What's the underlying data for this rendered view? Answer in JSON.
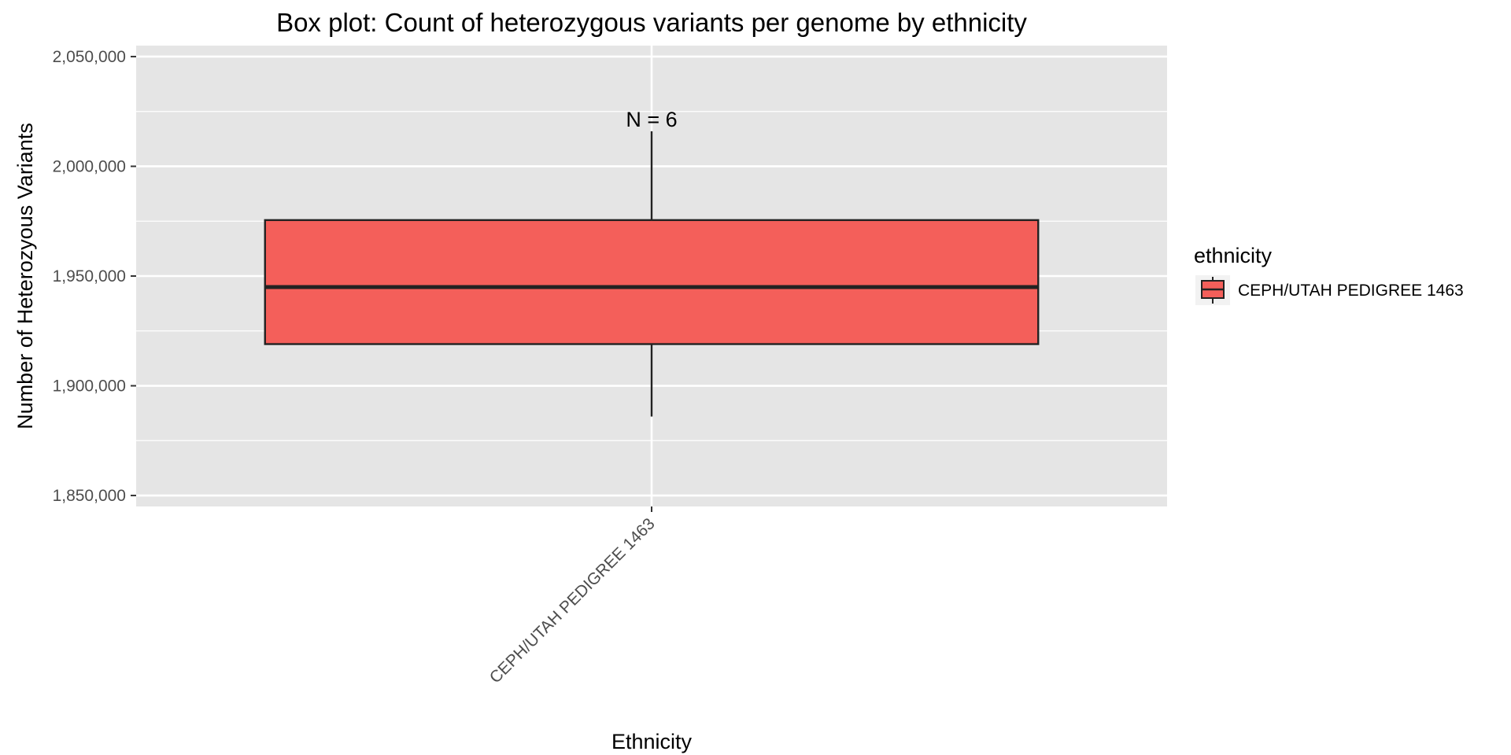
{
  "chart_data": {
    "type": "boxplot",
    "title": "Box plot: Count of heterozygous variants per genome by ethnicity",
    "xlabel": "Ethnicity",
    "ylabel": "Number of Heterozyous Variants",
    "categories": [
      "CEPH/UTAH PEDIGREE 1463"
    ],
    "boxes": [
      {
        "category": "CEPH/UTAH PEDIGREE 1463",
        "whisker_low": 1886000,
        "q1": 1919000,
        "median": 1945000,
        "q3": 1975500,
        "whisker_high": 2016000,
        "annotation": "N = 6"
      }
    ],
    "ylim": [
      1845000,
      2055000
    ],
    "yticks": [
      1850000,
      1900000,
      1950000,
      2000000,
      2050000
    ],
    "ytick_labels": [
      "1,850,000",
      "1,900,000",
      "1,950,000",
      "2,000,000",
      "2,050,000"
    ],
    "legend": {
      "title": "ethnicity",
      "placement": "right",
      "entries": [
        {
          "label": "CEPH/UTAH PEDIGREE 1463",
          "color": "#F8766D"
        }
      ]
    },
    "grid": true,
    "colors": {
      "panel": "#E5E5E5",
      "grid_major": "#FFFFFF",
      "box_fill": "#F45F5A",
      "box_stroke": "#222222"
    }
  }
}
